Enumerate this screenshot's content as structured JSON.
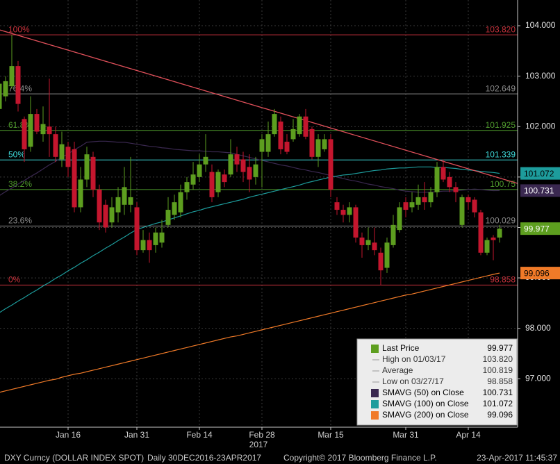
{
  "chart_data": {
    "type": "candlestick",
    "categories": [
      null,
      null,
      null,
      null,
      null,
      null,
      null,
      null,
      null,
      null,
      null,
      "Jan 16",
      null,
      null,
      null,
      null,
      null,
      null,
      null,
      null,
      null,
      null,
      "Jan 31",
      null,
      null,
      null,
      null,
      null,
      null,
      null,
      null,
      null,
      "Feb 14",
      null,
      null,
      null,
      null,
      null,
      null,
      null,
      null,
      null,
      "Feb 28",
      null,
      null,
      null,
      null,
      null,
      null,
      null,
      null,
      null,
      null,
      "Mar 15",
      null,
      null,
      null,
      null,
      null,
      null,
      null,
      null,
      null,
      null,
      null,
      "Mar 31",
      null,
      null,
      null,
      null,
      null,
      null,
      null,
      null,
      null,
      "Apr 14",
      null,
      null,
      null,
      null,
      null
    ],
    "year_label": "2017",
    "candles": {
      "name": "Last Price",
      "up_color": "#5d9e1f",
      "down_color": "#c4162e",
      "open": [
        102.35,
        102.6,
        102.8,
        103.2,
        102.15,
        101.6,
        102.25,
        101.85,
        102.0,
        101.85,
        101.35,
        101.6,
        101.55,
        100.4,
        100.95,
        101.4,
        100.75,
        100.45,
        100.1,
        100.3,
        100.45,
        100.45,
        100.4,
        99.55,
        99.75,
        99.65,
        99.7,
        100.05,
        100.25,
        100.3,
        100.7,
        100.85,
        101.0,
        101.25,
        101.1,
        100.7,
        101.05,
        101.05,
        101.45,
        101.35,
        101.2,
        101.0,
        101.5,
        101.5,
        101.85,
        102.1,
        101.7,
        101.75,
        101.85,
        102.2,
        101.95,
        101.4,
        101.55,
        101.75,
        100.5,
        100.35,
        100.25,
        100.4,
        99.8,
        99.65,
        99.7,
        99.5,
        99.2,
        99.65,
        99.95,
        100.5,
        100.4,
        100.45,
        100.6,
        100.5,
        100.7,
        101.2,
        101.0,
        100.8,
        100.05,
        100.6,
        100.55,
        100.3,
        99.5,
        99.8,
        99.8
      ],
      "high": [
        102.95,
        103.0,
        103.82,
        103.3,
        102.2,
        102.6,
        102.35,
        102.4,
        102.95,
        102.0,
        101.9,
        101.7,
        101.7,
        101.2,
        101.6,
        101.5,
        100.85,
        100.55,
        100.6,
        100.8,
        101.2,
        101.4,
        100.5,
        99.95,
        99.9,
        100.0,
        100.15,
        100.6,
        100.65,
        100.85,
        101.0,
        101.3,
        101.45,
        101.85,
        101.25,
        101.15,
        101.15,
        101.75,
        101.6,
        101.5,
        101.45,
        101.4,
        101.85,
        102.1,
        102.35,
        102.2,
        101.85,
        102.15,
        102.25,
        102.35,
        102.0,
        101.85,
        101.85,
        101.85,
        100.6,
        100.45,
        100.5,
        100.45,
        99.9,
        100.0,
        100.0,
        99.6,
        99.8,
        100.25,
        100.5,
        100.6,
        100.7,
        100.85,
        100.9,
        100.8,
        101.3,
        101.35,
        101.1,
        100.9,
        100.65,
        100.65,
        100.6,
        100.35,
        99.8,
        99.85,
        100.05
      ],
      "low": [
        102.2,
        102.5,
        102.75,
        102.3,
        101.3,
        101.5,
        101.85,
        101.7,
        101.4,
        101.3,
        101.2,
        101.0,
        100.3,
        100.3,
        100.8,
        100.6,
        99.95,
        99.9,
        100.0,
        100.1,
        100.25,
        100.3,
        99.45,
        99.5,
        99.3,
        99.5,
        99.6,
        100.0,
        100.15,
        100.2,
        100.55,
        100.75,
        100.9,
        101.1,
        100.5,
        100.6,
        100.8,
        101.0,
        101.1,
        100.9,
        100.7,
        100.85,
        100.8,
        101.4,
        101.8,
        101.45,
        101.45,
        101.7,
        101.8,
        101.75,
        101.35,
        101.2,
        101.5,
        100.6,
        100.25,
        100.1,
        100.1,
        99.7,
        99.4,
        99.55,
        99.45,
        98.858,
        99.1,
        99.6,
        99.9,
        100.2,
        100.3,
        100.35,
        100.35,
        100.4,
        100.6,
        100.9,
        100.7,
        100.5,
        100.0,
        100.35,
        100.2,
        99.45,
        99.45,
        99.35,
        99.7
      ],
      "close": [
        102.85,
        102.9,
        103.2,
        102.45,
        101.55,
        102.25,
        101.9,
        102.05,
        101.85,
        101.4,
        101.65,
        101.2,
        100.4,
        100.95,
        101.45,
        100.75,
        100.1,
        100.0,
        100.4,
        100.6,
        100.8,
        100.6,
        99.55,
        99.75,
        99.55,
        99.9,
        99.9,
        100.35,
        100.5,
        100.7,
        100.9,
        101.05,
        101.25,
        101.4,
        100.6,
        101.1,
        100.9,
        101.45,
        101.25,
        101.1,
        100.95,
        101.25,
        101.75,
        101.85,
        102.25,
        101.55,
        101.5,
        101.95,
        102.2,
        101.8,
        101.4,
        101.75,
        101.75,
        100.75,
        100.35,
        100.25,
        100.4,
        99.8,
        99.65,
        99.75,
        99.55,
        99.15,
        99.7,
        100.05,
        100.4,
        100.35,
        100.5,
        100.6,
        100.5,
        100.7,
        101.2,
        100.95,
        100.8,
        100.7,
        100.6,
        100.5,
        100.3,
        99.5,
        99.75,
        99.75,
        99.977
      ]
    },
    "series": [
      {
        "name": "SMAVG (50) on Close",
        "color": "#3a2850",
        "tag_text": "#ffffff",
        "values": [
          100.63,
          100.71,
          100.78,
          100.86,
          100.93,
          101.01,
          101.08,
          101.16,
          101.24,
          101.31,
          101.39,
          101.46,
          101.54,
          101.61,
          101.69,
          101.7,
          101.71,
          101.71,
          101.7,
          101.69,
          101.69,
          101.67,
          101.65,
          101.63,
          101.61,
          101.6,
          101.58,
          101.57,
          101.55,
          101.54,
          101.53,
          101.52,
          101.52,
          101.51,
          101.5,
          101.5,
          101.49,
          101.48,
          101.45,
          101.42,
          101.39,
          101.36,
          101.33,
          101.3,
          101.27,
          101.24,
          101.22,
          101.19,
          101.16,
          101.14,
          101.11,
          101.09,
          101.06,
          101.03,
          101.0,
          100.97,
          100.94,
          100.92,
          100.89,
          100.86,
          100.84,
          100.81,
          100.79,
          100.77,
          100.74,
          100.72,
          100.71,
          100.7,
          100.7,
          100.7,
          100.71,
          100.72,
          100.72,
          100.73,
          100.74,
          100.75,
          100.76,
          100.75,
          100.74,
          100.73,
          100.731
        ]
      },
      {
        "name": "SMAVG (100) on Close",
        "color": "#1d9c9c",
        "tag_text": "#000000",
        "values": [
          98.31,
          98.39,
          98.46,
          98.54,
          98.61,
          98.69,
          98.76,
          98.84,
          98.91,
          98.99,
          99.06,
          99.14,
          99.21,
          99.29,
          99.36,
          99.44,
          99.51,
          99.59,
          99.66,
          99.74,
          99.81,
          99.89,
          99.96,
          100.0,
          100.04,
          100.08,
          100.11,
          100.15,
          100.19,
          100.23,
          100.27,
          100.31,
          100.34,
          100.38,
          100.41,
          100.44,
          100.47,
          100.5,
          100.53,
          100.56,
          100.6,
          100.63,
          100.66,
          100.69,
          100.72,
          100.75,
          100.78,
          100.81,
          100.84,
          100.88,
          100.91,
          100.94,
          100.97,
          101.0,
          101.02,
          101.04,
          101.05,
          101.07,
          101.09,
          101.11,
          101.13,
          101.14,
          101.16,
          101.17,
          101.18,
          101.18,
          101.19,
          101.2,
          101.2,
          101.2,
          101.19,
          101.19,
          101.18,
          101.17,
          101.15,
          101.14,
          101.13,
          101.11,
          101.1,
          101.09,
          101.072
        ]
      },
      {
        "name": "SMAVG (200) on Close",
        "color": "#f07a28",
        "tag_text": "#000000",
        "values": [
          96.73,
          96.76,
          96.79,
          96.82,
          96.85,
          96.88,
          96.91,
          96.94,
          96.97,
          96.99,
          97.03,
          97.06,
          97.09,
          97.11,
          97.14,
          97.17,
          97.2,
          97.23,
          97.26,
          97.29,
          97.32,
          97.35,
          97.38,
          97.41,
          97.44,
          97.47,
          97.5,
          97.53,
          97.56,
          97.59,
          97.62,
          97.65,
          97.68,
          97.71,
          97.74,
          97.77,
          97.8,
          97.83,
          97.85,
          97.88,
          97.91,
          97.94,
          97.97,
          98.0,
          98.03,
          98.06,
          98.09,
          98.12,
          98.15,
          98.18,
          98.21,
          98.24,
          98.27,
          98.3,
          98.33,
          98.36,
          98.39,
          98.42,
          98.45,
          98.48,
          98.51,
          98.54,
          98.57,
          98.6,
          98.63,
          98.66,
          98.68,
          98.71,
          98.74,
          98.77,
          98.8,
          98.83,
          98.86,
          98.89,
          98.92,
          98.95,
          98.98,
          99.01,
          99.04,
          99.07,
          99.096
        ]
      }
    ],
    "last_price_value_label": "99.977",
    "stats": [
      {
        "label": "High on 01/03/17",
        "value": 103.82,
        "value_label": "103.820"
      },
      {
        "label": "Average",
        "value": 100.819,
        "value_label": "100.819"
      },
      {
        "label": "Low on 03/27/17",
        "value": 98.858,
        "value_label": "98.858"
      }
    ],
    "fib_levels": [
      {
        "label": "100%",
        "value": 103.82,
        "value_label": "103.820",
        "color": "#c8323c"
      },
      {
        "label": "76.4%",
        "value": 102.649,
        "value_label": "102.649",
        "color": "#8c8c8c"
      },
      {
        "label": "61.8%",
        "value": 101.925,
        "value_label": "101.925",
        "color": "#4e9a2c"
      },
      {
        "label": "50%",
        "value": 101.339,
        "value_label": "101.339",
        "color": "#3fdcdc"
      },
      {
        "label": "38.2%",
        "value": 100.752,
        "value_label": "100.75",
        "color": "#4e9a2c"
      },
      {
        "label": "23.6%",
        "value": 100.029,
        "value_label": "100.029",
        "color": "#8c8c8c"
      },
      {
        "label": "0%",
        "value": 98.858,
        "value_label": "98.858",
        "color": "#c8323c"
      }
    ],
    "trendline": {
      "color": "#e0505a",
      "values": [
        103.92,
        100.98
      ]
    },
    "ylim": [
      96.04,
      104.51
    ],
    "yticks": [
      {
        "value": 97,
        "label": "97.000"
      },
      {
        "value": 98,
        "label": "98.000"
      },
      {
        "value": 99,
        "label": "99.000"
      },
      {
        "value": 100,
        "label": "100.000"
      },
      {
        "value": 101,
        "label": "101.000"
      },
      {
        "value": 102,
        "label": "102.000"
      },
      {
        "value": 103,
        "label": "103.000"
      },
      {
        "value": 104,
        "label": "104.000"
      }
    ],
    "grid": true,
    "footer": {
      "ticker": "DXY Curncy (DOLLAR INDEX SPOT)",
      "range": "Daily 30DEC2016-23APR2017",
      "copyright": "Copyright© 2017 Bloomberg Finance L.P.",
      "timestamp": "23-Apr-2017 11:45:37"
    }
  }
}
